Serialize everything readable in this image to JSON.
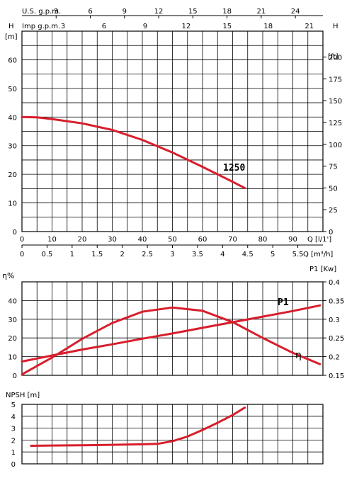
{
  "chart_data": [
    {
      "type": "line",
      "title": "",
      "model_label": "1250",
      "left_axis": {
        "unit_top": "H",
        "unit": "[m]",
        "ylim": [
          0,
          70
        ],
        "ticks": [
          "0",
          "10",
          "20",
          "30",
          "40",
          "50",
          "60"
        ]
      },
      "right_axis": {
        "unit_top": "H",
        "unit": "[ft]",
        "ylim": [
          0,
          229.66
        ],
        "ticks": [
          "0",
          "25",
          "50",
          "75",
          "100",
          "125",
          "150",
          "175",
          "200"
        ]
      },
      "top_axis_us": {
        "label": "U.S.  g.p.m.",
        "ticks": [
          "3",
          "6",
          "9",
          "12",
          "15",
          "18",
          "21",
          "24"
        ]
      },
      "top_axis_imp": {
        "label": "Imp  g.p.m.",
        "ticks": [
          "3",
          "6",
          "9",
          "12",
          "15",
          "18",
          "21"
        ]
      },
      "x_axis_lmin": {
        "label": "Q [l/1']",
        "xlim": [
          0,
          100
        ],
        "ticks": [
          "0",
          "10",
          "20",
          "30",
          "40",
          "50",
          "60",
          "70",
          "80",
          "90"
        ]
      },
      "x_axis_m3h": {
        "label": "Q [m³/h]",
        "ticks": [
          "0",
          "0.5",
          "1",
          "1.5",
          "2",
          "2.5",
          "3",
          "3.5",
          "4",
          "4.5",
          "5",
          "5.5"
        ]
      },
      "series": [
        {
          "name": "1250",
          "color": "#d81e2c",
          "x": [
            0,
            5,
            10,
            20,
            30,
            40,
            50,
            60,
            70,
            74
          ],
          "y": [
            40,
            39.9,
            39.3,
            37.8,
            35.5,
            32,
            27.6,
            22.6,
            17.4,
            15.2
          ]
        }
      ]
    },
    {
      "type": "line",
      "title": "",
      "left_axis": {
        "label": "η%",
        "ylim": [
          0,
          50
        ],
        "ticks": [
          "0",
          "10",
          "20",
          "30",
          "40"
        ]
      },
      "right_axis": {
        "label": "P1 [Kw]",
        "ylim": [
          0.15,
          0.4
        ],
        "ticks": [
          "0.15",
          "0.2",
          "0.25",
          "0.3",
          "0.35",
          "0.4"
        ]
      },
      "xlim": [
        0,
        100
      ],
      "series": [
        {
          "name": "η",
          "color": "#d81e2c",
          "axis": "left",
          "x": [
            0,
            10,
            20,
            30,
            40,
            50,
            60,
            70,
            80,
            90,
            99
          ],
          "y": [
            0.5,
            9.5,
            19.5,
            28,
            34,
            36.3,
            34.5,
            28.5,
            20,
            12,
            6
          ]
        },
        {
          "name": "P1",
          "color": "#d81e2c",
          "axis": "right",
          "x": [
            0,
            10,
            20,
            30,
            40,
            50,
            60,
            70,
            80,
            90,
            99
          ],
          "y": [
            0.187,
            0.203,
            0.219,
            0.233,
            0.248,
            0.262,
            0.277,
            0.292,
            0.307,
            0.322,
            0.337
          ]
        }
      ]
    },
    {
      "type": "line",
      "title": "",
      "left_axis": {
        "label": "NPSH [m]",
        "ylim": [
          0,
          5
        ],
        "ticks": [
          "0",
          "1",
          "2",
          "3",
          "4",
          "5"
        ]
      },
      "xlim": [
        0,
        100
      ],
      "series": [
        {
          "name": "NPSH",
          "color": "#d81e2c",
          "x": [
            3,
            10,
            20,
            30,
            40,
            45,
            50,
            55,
            60,
            65,
            70,
            74
          ],
          "y": [
            1.52,
            1.54,
            1.56,
            1.6,
            1.64,
            1.68,
            1.9,
            2.3,
            2.85,
            3.45,
            4.1,
            4.72
          ]
        }
      ]
    }
  ],
  "labels": {
    "eta_curve": "η",
    "p1_curve": "P1"
  }
}
